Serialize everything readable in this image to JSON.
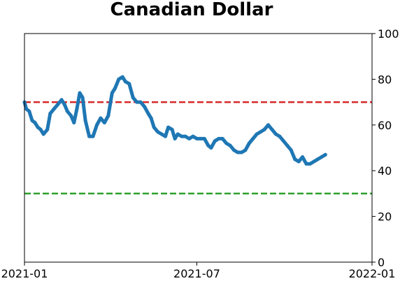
{
  "chart_data": {
    "type": "line",
    "title": "Canadian Dollar",
    "xlabel": "",
    "ylabel": "",
    "x_range": [
      "2021-01-01",
      "2022-01-01"
    ],
    "x_ticks": [
      "2021-01",
      "2021-07",
      "2022-01"
    ],
    "y_axis_side": "right",
    "ylim": [
      0,
      100
    ],
    "y_ticks": [
      0,
      20,
      40,
      60,
      80,
      100
    ],
    "grid": false,
    "legend": "none",
    "reference_lines": [
      {
        "value": 70,
        "color": "#d62728",
        "style": "dashed"
      },
      {
        "value": 30,
        "color": "#2ca02c",
        "style": "dashed"
      }
    ],
    "series": [
      {
        "color": "#1f77b4",
        "points": [
          [
            "2021-01-01",
            70
          ],
          [
            "2021-01-03",
            67
          ],
          [
            "2021-01-06",
            66
          ],
          [
            "2021-01-09",
            62
          ],
          [
            "2021-01-12",
            61
          ],
          [
            "2021-01-15",
            59
          ],
          [
            "2021-01-18",
            58
          ],
          [
            "2021-01-21",
            56
          ],
          [
            "2021-01-25",
            58
          ],
          [
            "2021-01-28",
            65
          ],
          [
            "2021-02-01",
            67
          ],
          [
            "2021-02-05",
            69
          ],
          [
            "2021-02-09",
            71
          ],
          [
            "2021-02-12",
            69
          ],
          [
            "2021-02-15",
            66
          ],
          [
            "2021-02-19",
            64
          ],
          [
            "2021-02-22",
            61
          ],
          [
            "2021-02-25",
            67
          ],
          [
            "2021-02-28",
            74
          ],
          [
            "2021-03-03",
            72
          ],
          [
            "2021-03-06",
            62
          ],
          [
            "2021-03-10",
            55
          ],
          [
            "2021-03-14",
            55
          ],
          [
            "2021-03-18",
            60
          ],
          [
            "2021-03-22",
            63
          ],
          [
            "2021-03-26",
            61
          ],
          [
            "2021-03-30",
            64
          ],
          [
            "2021-04-03",
            74
          ],
          [
            "2021-04-06",
            76
          ],
          [
            "2021-04-10",
            80
          ],
          [
            "2021-04-14",
            81
          ],
          [
            "2021-04-17",
            79
          ],
          [
            "2021-04-21",
            78
          ],
          [
            "2021-04-25",
            72
          ],
          [
            "2021-04-29",
            70
          ],
          [
            "2021-05-03",
            70
          ],
          [
            "2021-05-07",
            68
          ],
          [
            "2021-05-11",
            65
          ],
          [
            "2021-05-14",
            63
          ],
          [
            "2021-05-17",
            59
          ],
          [
            "2021-05-21",
            57
          ],
          [
            "2021-05-25",
            56
          ],
          [
            "2021-05-29",
            55
          ],
          [
            "2021-06-01",
            59
          ],
          [
            "2021-06-05",
            58
          ],
          [
            "2021-06-08",
            54
          ],
          [
            "2021-06-11",
            56
          ],
          [
            "2021-06-15",
            55
          ],
          [
            "2021-06-19",
            55
          ],
          [
            "2021-06-23",
            54
          ],
          [
            "2021-06-27",
            55
          ],
          [
            "2021-07-01",
            54
          ],
          [
            "2021-07-05",
            54
          ],
          [
            "2021-07-09",
            54
          ],
          [
            "2021-07-13",
            51
          ],
          [
            "2021-07-16",
            50
          ],
          [
            "2021-07-20",
            53
          ],
          [
            "2021-07-24",
            54
          ],
          [
            "2021-07-28",
            54
          ],
          [
            "2021-08-01",
            52
          ],
          [
            "2021-08-05",
            51
          ],
          [
            "2021-08-09",
            49
          ],
          [
            "2021-08-13",
            48
          ],
          [
            "2021-08-17",
            48
          ],
          [
            "2021-08-21",
            49
          ],
          [
            "2021-08-25",
            52
          ],
          [
            "2021-08-29",
            54
          ],
          [
            "2021-09-02",
            56
          ],
          [
            "2021-09-06",
            57
          ],
          [
            "2021-09-10",
            58
          ],
          [
            "2021-09-14",
            60
          ],
          [
            "2021-09-18",
            58
          ],
          [
            "2021-09-22",
            56
          ],
          [
            "2021-09-26",
            55
          ],
          [
            "2021-09-30",
            53
          ],
          [
            "2021-10-04",
            51
          ],
          [
            "2021-10-08",
            49
          ],
          [
            "2021-10-12",
            45
          ],
          [
            "2021-10-16",
            44
          ],
          [
            "2021-10-20",
            46
          ],
          [
            "2021-10-24",
            43
          ],
          [
            "2021-10-28",
            43
          ],
          [
            "2021-11-01",
            44
          ],
          [
            "2021-11-05",
            45
          ],
          [
            "2021-11-09",
            46
          ],
          [
            "2021-11-13",
            47
          ]
        ]
      }
    ]
  }
}
